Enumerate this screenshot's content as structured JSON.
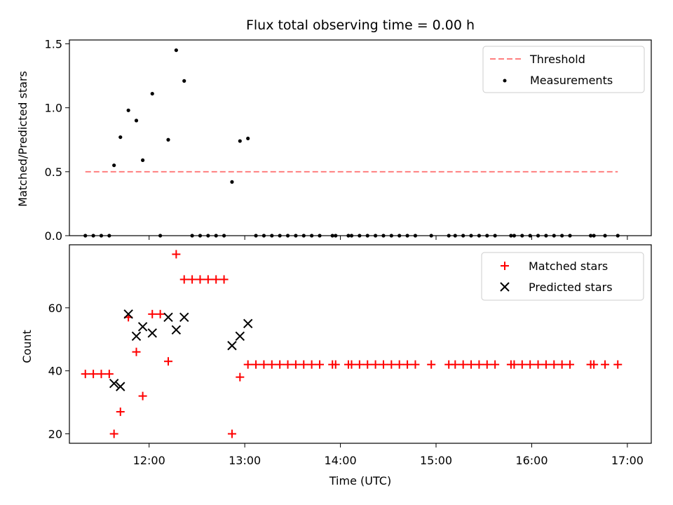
{
  "chart_data": [
    {
      "type": "scatter",
      "title": "Flux total observing time = 0.00 h",
      "xlabel": "",
      "ylabel": "Matched/Predicted stars",
      "xlim": [
        "11:10",
        "17:15"
      ],
      "ylim": [
        0,
        1.53
      ],
      "yticks": [
        0.0,
        0.5,
        1.0,
        1.5
      ],
      "ytick_labels": [
        "0.0",
        "0.5",
        "1.0",
        "1.5"
      ],
      "xticks": [
        "12:00",
        "13:00",
        "14:00",
        "15:00",
        "16:00",
        "17:00"
      ],
      "legend_position": "upper right",
      "legend": [
        "Threshold",
        "Measurements"
      ],
      "threshold": {
        "label": "Threshold",
        "value": 0.5,
        "x_start": "11:20",
        "x_end": "16:54",
        "color": "#ff7f7f",
        "style": "dashed"
      },
      "series": [
        {
          "name": "Measurements",
          "marker": "dot",
          "color": "#000000",
          "points": [
            [
              "11:20",
              0
            ],
            [
              "11:25",
              0
            ],
            [
              "11:30",
              0
            ],
            [
              "11:35",
              0
            ],
            [
              "11:38",
              0.55
            ],
            [
              "11:42",
              0.77
            ],
            [
              "11:47",
              0.98
            ],
            [
              "11:52",
              0.9
            ],
            [
              "11:56",
              0.59
            ],
            [
              "12:02",
              1.11
            ],
            [
              "12:07",
              0
            ],
            [
              "12:12",
              0.75
            ],
            [
              "12:17",
              1.45
            ],
            [
              "12:22",
              1.21
            ],
            [
              "12:27",
              0
            ],
            [
              "12:32",
              0
            ],
            [
              "12:37",
              0
            ],
            [
              "12:42",
              0
            ],
            [
              "12:47",
              0
            ],
            [
              "12:52",
              0.42
            ],
            [
              "12:57",
              0.74
            ],
            [
              "13:02",
              0.76
            ],
            [
              "13:07",
              0
            ],
            [
              "13:12",
              0
            ],
            [
              "13:17",
              0
            ],
            [
              "13:22",
              0
            ],
            [
              "13:27",
              0
            ],
            [
              "13:32",
              0
            ],
            [
              "13:37",
              0
            ],
            [
              "13:42",
              0
            ],
            [
              "13:47",
              0
            ],
            [
              "13:55",
              0
            ],
            [
              "13:57",
              0
            ],
            [
              "14:05",
              0
            ],
            [
              "14:07",
              0
            ],
            [
              "14:12",
              0
            ],
            [
              "14:17",
              0
            ],
            [
              "14:22",
              0
            ],
            [
              "14:27",
              0
            ],
            [
              "14:32",
              0
            ],
            [
              "14:37",
              0
            ],
            [
              "14:42",
              0
            ],
            [
              "14:47",
              0
            ],
            [
              "14:57",
              0
            ],
            [
              "15:08",
              0
            ],
            [
              "15:12",
              0
            ],
            [
              "15:17",
              0
            ],
            [
              "15:22",
              0
            ],
            [
              "15:27",
              0
            ],
            [
              "15:32",
              0
            ],
            [
              "15:37",
              0
            ],
            [
              "15:47",
              0
            ],
            [
              "15:49",
              0
            ],
            [
              "15:54",
              0
            ],
            [
              "15:59",
              0
            ],
            [
              "16:04",
              0
            ],
            [
              "16:09",
              0
            ],
            [
              "16:14",
              0
            ],
            [
              "16:19",
              0
            ],
            [
              "16:24",
              0
            ],
            [
              "16:37",
              0
            ],
            [
              "16:39",
              0
            ],
            [
              "16:46",
              0
            ],
            [
              "16:54",
              0
            ]
          ]
        }
      ]
    },
    {
      "type": "scatter",
      "title": "",
      "xlabel": "Time (UTC)",
      "ylabel": "Count",
      "xlim": [
        "11:10",
        "17:15"
      ],
      "ylim": [
        17,
        80
      ],
      "yticks": [
        20,
        40,
        60
      ],
      "ytick_labels": [
        "20",
        "40",
        "60"
      ],
      "xticks": [
        "12:00",
        "13:00",
        "14:00",
        "15:00",
        "16:00",
        "17:00"
      ],
      "xtick_labels": [
        "12:00",
        "13:00",
        "14:00",
        "15:00",
        "16:00",
        "17:00"
      ],
      "legend_position": "upper right",
      "legend": [
        "Matched stars",
        "Predicted stars"
      ],
      "series": [
        {
          "name": "Matched stars",
          "marker": "plus",
          "color": "#ff0000",
          "points": [
            [
              "11:20",
              39
            ],
            [
              "11:25",
              39
            ],
            [
              "11:30",
              39
            ],
            [
              "11:35",
              39
            ],
            [
              "11:38",
              20
            ],
            [
              "11:42",
              27
            ],
            [
              "11:47",
              57
            ],
            [
              "11:52",
              46
            ],
            [
              "11:56",
              32
            ],
            [
              "12:02",
              58
            ],
            [
              "12:07",
              58
            ],
            [
              "12:12",
              43
            ],
            [
              "12:17",
              77
            ],
            [
              "12:22",
              69
            ],
            [
              "12:27",
              69
            ],
            [
              "12:32",
              69
            ],
            [
              "12:37",
              69
            ],
            [
              "12:42",
              69
            ],
            [
              "12:47",
              69
            ],
            [
              "12:52",
              20
            ],
            [
              "12:57",
              38
            ],
            [
              "13:02",
              42
            ],
            [
              "13:07",
              42
            ],
            [
              "13:12",
              42
            ],
            [
              "13:17",
              42
            ],
            [
              "13:22",
              42
            ],
            [
              "13:27",
              42
            ],
            [
              "13:32",
              42
            ],
            [
              "13:37",
              42
            ],
            [
              "13:42",
              42
            ],
            [
              "13:47",
              42
            ],
            [
              "13:55",
              42
            ],
            [
              "13:57",
              42
            ],
            [
              "14:05",
              42
            ],
            [
              "14:07",
              42
            ],
            [
              "14:12",
              42
            ],
            [
              "14:17",
              42
            ],
            [
              "14:22",
              42
            ],
            [
              "14:27",
              42
            ],
            [
              "14:32",
              42
            ],
            [
              "14:37",
              42
            ],
            [
              "14:42",
              42
            ],
            [
              "14:47",
              42
            ],
            [
              "14:57",
              42
            ],
            [
              "15:08",
              42
            ],
            [
              "15:12",
              42
            ],
            [
              "15:17",
              42
            ],
            [
              "15:22",
              42
            ],
            [
              "15:27",
              42
            ],
            [
              "15:32",
              42
            ],
            [
              "15:37",
              42
            ],
            [
              "15:47",
              42
            ],
            [
              "15:49",
              42
            ],
            [
              "15:54",
              42
            ],
            [
              "15:59",
              42
            ],
            [
              "16:04",
              42
            ],
            [
              "16:09",
              42
            ],
            [
              "16:14",
              42
            ],
            [
              "16:19",
              42
            ],
            [
              "16:24",
              42
            ],
            [
              "16:37",
              42
            ],
            [
              "16:39",
              42
            ],
            [
              "16:46",
              42
            ],
            [
              "16:54",
              42
            ]
          ]
        },
        {
          "name": "Predicted stars",
          "marker": "x",
          "color": "#000000",
          "points": [
            [
              "11:38",
              36
            ],
            [
              "11:42",
              35
            ],
            [
              "11:47",
              58
            ],
            [
              "11:52",
              51
            ],
            [
              "11:56",
              54
            ],
            [
              "12:02",
              52
            ],
            [
              "12:12",
              57
            ],
            [
              "12:17",
              53
            ],
            [
              "12:22",
              57
            ],
            [
              "12:52",
              48
            ],
            [
              "12:57",
              51
            ],
            [
              "13:02",
              55
            ]
          ]
        }
      ]
    }
  ]
}
